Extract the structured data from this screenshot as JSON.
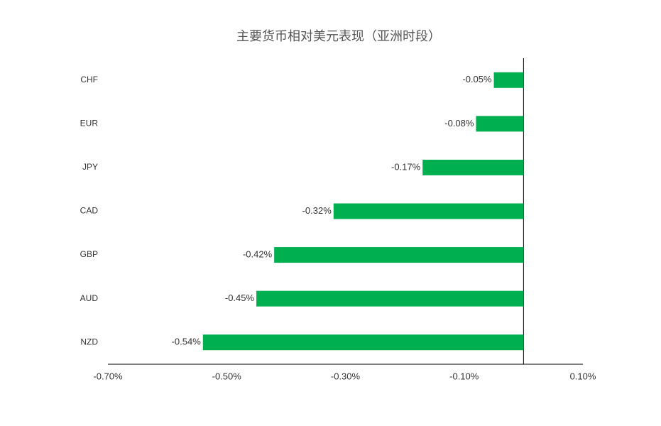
{
  "chart_data": {
    "type": "bar",
    "orientation": "horizontal",
    "title": "主要货币相对美元表现（亚洲时段）",
    "categories": [
      "CHF",
      "EUR",
      "JPY",
      "CAD",
      "GBP",
      "AUD",
      "NZD"
    ],
    "values": [
      -0.05,
      -0.08,
      -0.17,
      -0.32,
      -0.42,
      -0.45,
      -0.54
    ],
    "value_labels": [
      "-0.05%",
      "-0.08%",
      "-0.17%",
      "-0.32%",
      "-0.42%",
      "-0.45%",
      "-0.54%"
    ],
    "color": "#00b050",
    "xlim": [
      -0.7,
      0.1
    ],
    "xticks": [
      {
        "value": -0.7,
        "label": "-0.70%"
      },
      {
        "value": -0.5,
        "label": "-0.50%"
      },
      {
        "value": -0.3,
        "label": "-0.30%"
      },
      {
        "value": -0.1,
        "label": "-0.10%"
      },
      {
        "value": 0.1,
        "label": "0.10%"
      }
    ],
    "grid": false
  }
}
